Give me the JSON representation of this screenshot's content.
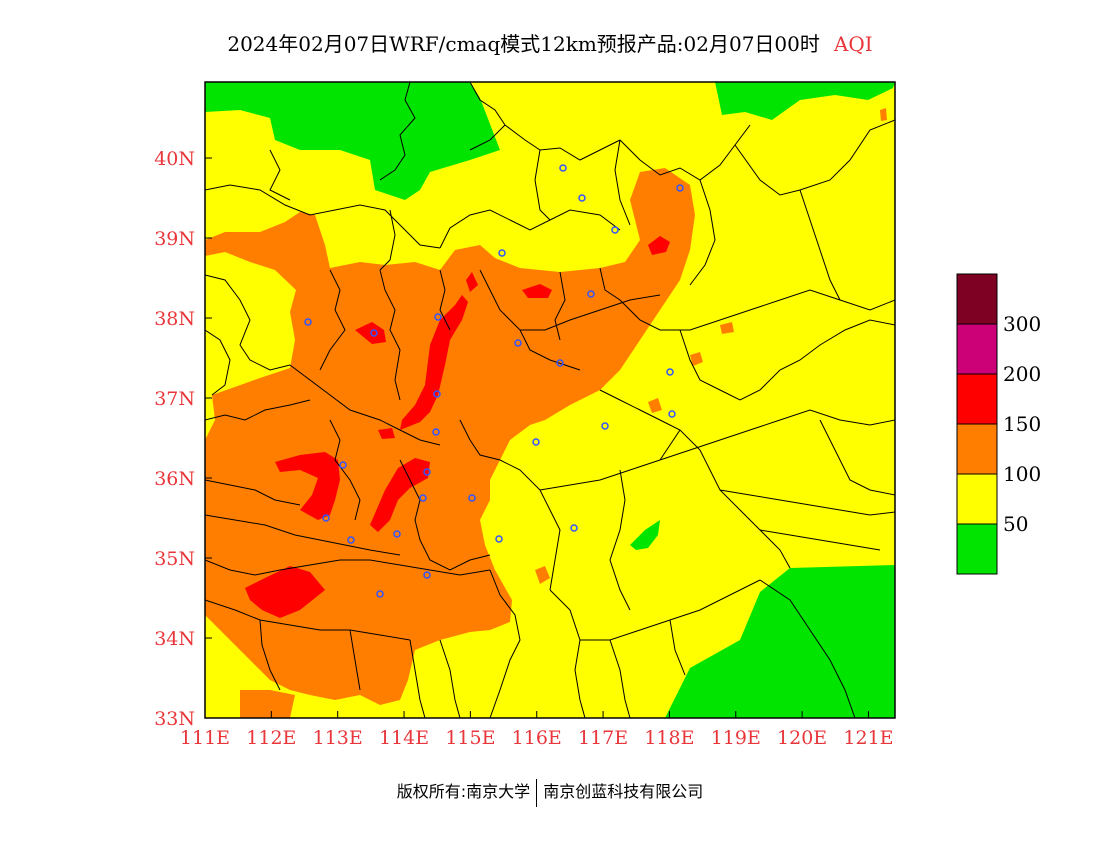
{
  "title": {
    "main": "2024年02月07日WRF/cmaq模式12km预报产品:02月07日00时",
    "product": "AQI"
  },
  "map": {
    "lon_range": [
      111,
      121.4
    ],
    "lat_range": [
      33,
      40.95
    ],
    "x_ticks": [
      "111E",
      "112E",
      "113E",
      "114E",
      "115E",
      "116E",
      "117E",
      "118E",
      "119E",
      "120E",
      "121E"
    ],
    "y_ticks": [
      "33N",
      "34N",
      "35N",
      "36N",
      "37N",
      "38N",
      "39N",
      "40N"
    ],
    "tick_label_color": "#e8363a"
  },
  "legend": {
    "levels": [
      {
        "label": "",
        "color": "#7e0023"
      },
      {
        "label": "300",
        "color": "#cc0077"
      },
      {
        "label": "200",
        "color": "#ff0000"
      },
      {
        "label": "150",
        "color": "#ff7e00"
      },
      {
        "label": "100",
        "color": "#ffff00"
      },
      {
        "label": "50",
        "color": "#00e400"
      }
    ]
  },
  "colors": {
    "good": "#00e400",
    "moderate": "#ffff00",
    "usg": "#ff7e00",
    "unhealthy": "#ff0000",
    "very_unhealthy": "#cc0077",
    "hazardous": "#7e0023",
    "station_marker": "#3355ff"
  },
  "footer": {
    "copyright": "版权所有:南京大学",
    "company": "南京创蓝科技有限公司"
  }
}
